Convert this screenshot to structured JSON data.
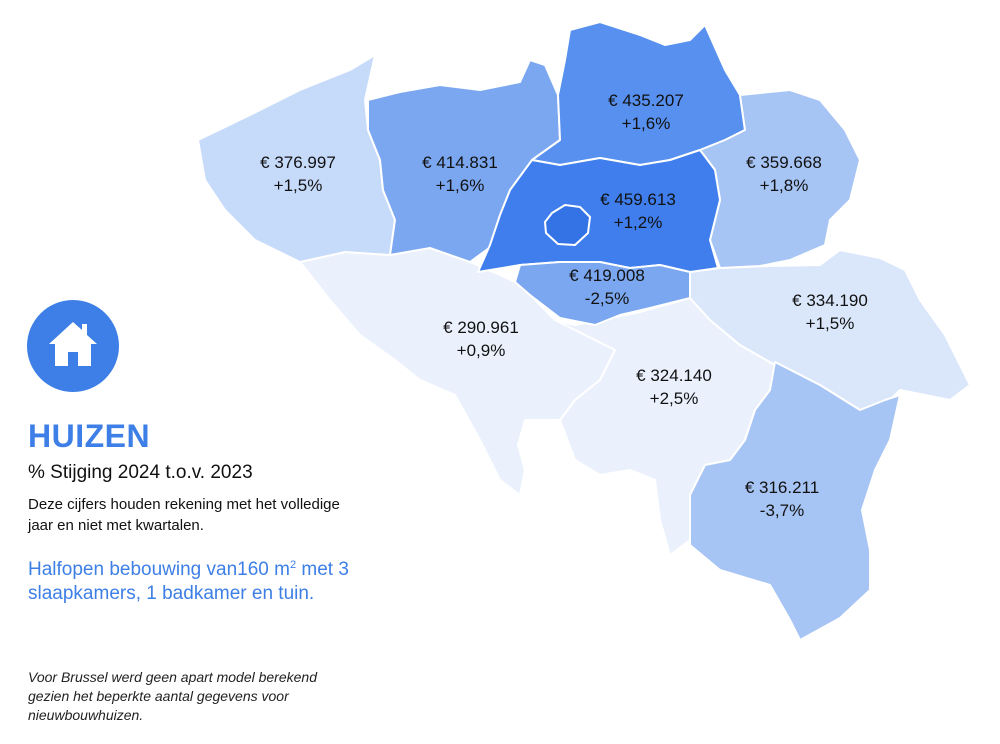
{
  "title": "HUIZEN",
  "subtitle": "% Stijging 2024 t.o.v. 2023",
  "note": "Deze cijfers houden rekening met het volledige jaar en niet met kwartalen.",
  "spec": {
    "text_before_sup": "Halfopen bebouwing van160 m",
    "sup": "2",
    "text_after_sup": " met 3 slaapkamers, 1 badkamer en tuin."
  },
  "footnote": "Voor Brussel werd geen apart model berekend gezien het beperkte aantal gegevens voor nieuwbouwhuizen.",
  "icon": "house-icon",
  "colors": {
    "accent": "#3d7fe6",
    "shade_1": "#3f7eec",
    "shade_2": "#5790ee",
    "shade_3": "#7ba7f0",
    "shade_4": "#a6c4f4",
    "shade_5": "#c6dafa",
    "shade_6": "#dae7fb",
    "shade_7": "#eaf1fd",
    "brussels": "#3473e6"
  },
  "regions": [
    {
      "id": "west-vlaanderen",
      "price": "€ 376.997",
      "change": "+1,5%"
    },
    {
      "id": "oost-vlaanderen",
      "price": "€ 414.831",
      "change": "+1,6%"
    },
    {
      "id": "antwerpen",
      "price": "€ 435.207",
      "change": "+1,6%"
    },
    {
      "id": "limburg",
      "price": "€ 359.668",
      "change": "+1,8%"
    },
    {
      "id": "vlaams-brabant",
      "price": "€ 459.613",
      "change": "+1,2%"
    },
    {
      "id": "waals-brabant",
      "price": "€ 419.008",
      "change": "-2,5%"
    },
    {
      "id": "henegouwen",
      "price": "€ 290.961",
      "change": "+0,9%"
    },
    {
      "id": "luik",
      "price": "€ 334.190",
      "change": "+1,5%"
    },
    {
      "id": "namen",
      "price": "€ 324.140",
      "change": "+2,5%"
    },
    {
      "id": "luxemburg",
      "price": "€ 316.211",
      "change": "-3,7%"
    }
  ]
}
